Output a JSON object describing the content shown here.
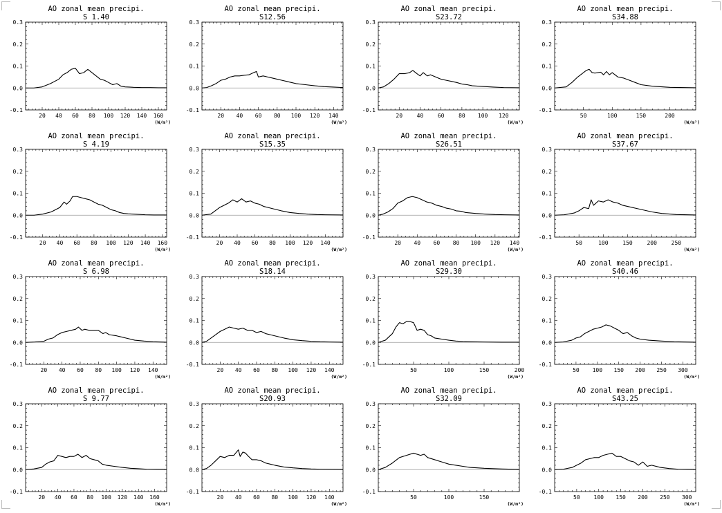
{
  "page": {
    "axis_unit_label": "(W/m²)",
    "colors": {
      "line": "#000000",
      "zero_line": "#9a9a9a",
      "frame": "#000000",
      "background": "#ffffff"
    }
  },
  "chart_data": [
    {
      "type": "line",
      "title": "AO zonal mean precipi.",
      "subtitle": "S 1.40",
      "xlim": [
        0,
        170
      ],
      "ylim": [
        -0.1,
        0.3
      ],
      "xticks": [
        20,
        40,
        60,
        80,
        100,
        120,
        140,
        160
      ],
      "yticks": [
        -0.1,
        0.0,
        0.1,
        0.2,
        0.3
      ],
      "x": [
        0,
        10,
        20,
        30,
        40,
        45,
        50,
        55,
        60,
        65,
        70,
        75,
        80,
        85,
        90,
        95,
        100,
        105,
        110,
        115,
        120,
        125,
        130,
        140,
        150,
        160,
        170
      ],
      "y": [
        0,
        0,
        0.005,
        0.02,
        0.04,
        0.06,
        0.07,
        0.085,
        0.09,
        0.065,
        0.07,
        0.085,
        0.07,
        0.055,
        0.04,
        0.035,
        0.025,
        0.015,
        0.02,
        0.008,
        0.005,
        0.004,
        0.003,
        0.002,
        0.002,
        0.001,
        0.001
      ]
    },
    {
      "type": "line",
      "title": "AO zonal mean precipi.",
      "subtitle": "S12.56",
      "xlim": [
        0,
        150
      ],
      "ylim": [
        -0.1,
        0.3
      ],
      "xticks": [
        20,
        40,
        60,
        80,
        100,
        120,
        140
      ],
      "yticks": [
        -0.1,
        0.0,
        0.1,
        0.2,
        0.3
      ],
      "x": [
        0,
        5,
        10,
        15,
        20,
        25,
        30,
        35,
        40,
        45,
        50,
        55,
        58,
        60,
        65,
        70,
        75,
        80,
        85,
        90,
        95,
        100,
        110,
        120,
        130,
        140,
        150
      ],
      "y": [
        0,
        0.002,
        0.01,
        0.02,
        0.035,
        0.04,
        0.05,
        0.055,
        0.055,
        0.058,
        0.06,
        0.07,
        0.075,
        0.05,
        0.055,
        0.05,
        0.045,
        0.04,
        0.035,
        0.03,
        0.025,
        0.02,
        0.015,
        0.01,
        0.006,
        0.004,
        0.002
      ]
    },
    {
      "type": "line",
      "title": "AO zonal mean precipi.",
      "subtitle": "S23.72",
      "xlim": [
        0,
        135
      ],
      "ylim": [
        -0.1,
        0.3
      ],
      "xticks": [
        20,
        40,
        60,
        80,
        100,
        120
      ],
      "yticks": [
        -0.1,
        0.0,
        0.1,
        0.2,
        0.3
      ],
      "x": [
        0,
        5,
        10,
        15,
        20,
        25,
        30,
        33,
        37,
        40,
        43,
        47,
        50,
        55,
        60,
        65,
        70,
        75,
        80,
        85,
        90,
        100,
        110,
        120,
        135
      ],
      "y": [
        0,
        0.005,
        0.02,
        0.04,
        0.065,
        0.065,
        0.07,
        0.08,
        0.065,
        0.055,
        0.07,
        0.055,
        0.06,
        0.05,
        0.04,
        0.035,
        0.03,
        0.025,
        0.018,
        0.015,
        0.01,
        0.007,
        0.004,
        0.002,
        0.001
      ]
    },
    {
      "type": "line",
      "title": "AO zonal mean precipi.",
      "subtitle": "S34.88",
      "xlim": [
        0,
        245
      ],
      "ylim": [
        -0.1,
        0.3
      ],
      "xticks": [
        50,
        100,
        150,
        200
      ],
      "yticks": [
        -0.1,
        0.0,
        0.1,
        0.2,
        0.3
      ],
      "x": [
        0,
        20,
        30,
        40,
        50,
        55,
        60,
        65,
        70,
        80,
        85,
        90,
        95,
        100,
        110,
        120,
        130,
        140,
        150,
        170,
        200,
        245
      ],
      "y": [
        0,
        0.005,
        0.025,
        0.05,
        0.07,
        0.08,
        0.085,
        0.07,
        0.068,
        0.072,
        0.06,
        0.075,
        0.06,
        0.07,
        0.05,
        0.045,
        0.035,
        0.025,
        0.015,
        0.008,
        0.003,
        0.001
      ]
    },
    {
      "type": "line",
      "title": "AO zonal mean precipi.",
      "subtitle": "S 4.19",
      "xlim": [
        0,
        165
      ],
      "ylim": [
        -0.1,
        0.3
      ],
      "xticks": [
        20,
        40,
        60,
        80,
        100,
        120,
        140,
        160
      ],
      "yticks": [
        -0.1,
        0.0,
        0.1,
        0.2,
        0.3
      ],
      "x": [
        0,
        10,
        20,
        30,
        40,
        45,
        48,
        52,
        55,
        60,
        65,
        70,
        75,
        80,
        85,
        90,
        95,
        100,
        105,
        110,
        115,
        120,
        130,
        140,
        150,
        165
      ],
      "y": [
        0,
        0,
        0.005,
        0.015,
        0.035,
        0.06,
        0.05,
        0.065,
        0.085,
        0.085,
        0.08,
        0.075,
        0.07,
        0.06,
        0.05,
        0.045,
        0.035,
        0.025,
        0.02,
        0.012,
        0.008,
        0.006,
        0.004,
        0.002,
        0.001,
        0.001
      ]
    },
    {
      "type": "line",
      "title": "AO zonal mean precipi.",
      "subtitle": "S15.35",
      "xlim": [
        0,
        160
      ],
      "ylim": [
        -0.1,
        0.3
      ],
      "xticks": [
        20,
        40,
        60,
        80,
        100,
        120,
        140
      ],
      "yticks": [
        -0.1,
        0.0,
        0.1,
        0.2,
        0.3
      ],
      "x": [
        0,
        10,
        15,
        20,
        25,
        30,
        35,
        40,
        45,
        50,
        55,
        60,
        65,
        70,
        75,
        80,
        90,
        100,
        110,
        120,
        130,
        140,
        160
      ],
      "y": [
        0,
        0.005,
        0.02,
        0.035,
        0.045,
        0.055,
        0.07,
        0.06,
        0.075,
        0.06,
        0.065,
        0.055,
        0.05,
        0.04,
        0.035,
        0.03,
        0.02,
        0.012,
        0.008,
        0.005,
        0.003,
        0.002,
        0.001
      ]
    },
    {
      "type": "line",
      "title": "AO zonal mean precipi.",
      "subtitle": "S26.51",
      "xlim": [
        0,
        145
      ],
      "ylim": [
        -0.1,
        0.3
      ],
      "xticks": [
        20,
        40,
        60,
        80,
        100,
        120,
        140
      ],
      "yticks": [
        -0.1,
        0.0,
        0.1,
        0.2,
        0.3
      ],
      "x": [
        0,
        5,
        10,
        15,
        20,
        25,
        30,
        35,
        40,
        45,
        50,
        55,
        60,
        65,
        70,
        75,
        80,
        85,
        90,
        100,
        110,
        120,
        130,
        145
      ],
      "y": [
        0,
        0.005,
        0.015,
        0.03,
        0.055,
        0.065,
        0.08,
        0.085,
        0.08,
        0.07,
        0.06,
        0.055,
        0.045,
        0.04,
        0.032,
        0.028,
        0.02,
        0.018,
        0.012,
        0.008,
        0.005,
        0.003,
        0.002,
        0.001
      ]
    },
    {
      "type": "line",
      "title": "AO zonal mean precipi.",
      "subtitle": "S37.67",
      "xlim": [
        0,
        290
      ],
      "ylim": [
        -0.1,
        0.3
      ],
      "xticks": [
        50,
        100,
        150,
        200,
        250
      ],
      "yticks": [
        -0.1,
        0.0,
        0.1,
        0.2,
        0.3
      ],
      "x": [
        0,
        20,
        40,
        50,
        60,
        70,
        75,
        80,
        90,
        100,
        110,
        120,
        130,
        140,
        150,
        170,
        200,
        220,
        250,
        290
      ],
      "y": [
        0,
        0.002,
        0.01,
        0.02,
        0.035,
        0.03,
        0.07,
        0.045,
        0.065,
        0.06,
        0.07,
        0.06,
        0.055,
        0.045,
        0.04,
        0.03,
        0.015,
        0.008,
        0.003,
        0.001
      ]
    },
    {
      "type": "line",
      "title": "AO zonal mean precipi.",
      "subtitle": "S 6.98",
      "xlim": [
        0,
        155
      ],
      "ylim": [
        -0.1,
        0.3
      ],
      "xticks": [
        20,
        40,
        60,
        80,
        100,
        120,
        140
      ],
      "yticks": [
        -0.1,
        0.0,
        0.1,
        0.2,
        0.3
      ],
      "x": [
        0,
        10,
        20,
        25,
        30,
        35,
        40,
        45,
        50,
        55,
        58,
        62,
        65,
        70,
        75,
        80,
        85,
        88,
        92,
        100,
        105,
        110,
        120,
        130,
        140,
        155
      ],
      "y": [
        0,
        0.002,
        0.005,
        0.015,
        0.02,
        0.035,
        0.045,
        0.05,
        0.055,
        0.06,
        0.07,
        0.055,
        0.06,
        0.055,
        0.055,
        0.055,
        0.04,
        0.045,
        0.035,
        0.03,
        0.025,
        0.02,
        0.01,
        0.006,
        0.003,
        0.001
      ]
    },
    {
      "type": "line",
      "title": "AO zonal mean precipi.",
      "subtitle": "S18.14",
      "xlim": [
        0,
        155
      ],
      "ylim": [
        -0.1,
        0.3
      ],
      "xticks": [
        20,
        40,
        60,
        80,
        100,
        120,
        140
      ],
      "yticks": [
        -0.1,
        0.0,
        0.1,
        0.2,
        0.3
      ],
      "x": [
        0,
        5,
        10,
        15,
        20,
        25,
        30,
        35,
        40,
        45,
        50,
        55,
        60,
        65,
        70,
        75,
        80,
        90,
        100,
        110,
        120,
        130,
        140,
        155
      ],
      "y": [
        0,
        0.005,
        0.02,
        0.035,
        0.05,
        0.06,
        0.07,
        0.065,
        0.06,
        0.065,
        0.055,
        0.055,
        0.045,
        0.05,
        0.04,
        0.035,
        0.03,
        0.02,
        0.012,
        0.008,
        0.005,
        0.003,
        0.002,
        0.001
      ]
    },
    {
      "type": "line",
      "title": "AO zonal mean precipi.",
      "subtitle": "S29.30",
      "xlim": [
        0,
        200
      ],
      "ylim": [
        -0.1,
        0.3
      ],
      "xticks": [
        50,
        100,
        150,
        200
      ],
      "yticks": [
        -0.1,
        0.0,
        0.1,
        0.2,
        0.3
      ],
      "x": [
        0,
        10,
        20,
        25,
        30,
        35,
        40,
        45,
        50,
        55,
        60,
        65,
        70,
        75,
        80,
        90,
        100,
        110,
        120,
        130,
        150,
        175,
        200
      ],
      "y": [
        0,
        0.01,
        0.04,
        0.07,
        0.09,
        0.085,
        0.095,
        0.095,
        0.09,
        0.055,
        0.06,
        0.055,
        0.035,
        0.03,
        0.02,
        0.015,
        0.01,
        0.006,
        0.004,
        0.003,
        0.002,
        0.001,
        0.001
      ]
    },
    {
      "type": "line",
      "title": "AO zonal mean precipi.",
      "subtitle": "S40.46",
      "xlim": [
        0,
        330
      ],
      "ylim": [
        -0.1,
        0.3
      ],
      "xticks": [
        50,
        100,
        150,
        200,
        250,
        300
      ],
      "yticks": [
        -0.1,
        0.0,
        0.1,
        0.2,
        0.3
      ],
      "x": [
        0,
        20,
        40,
        50,
        60,
        70,
        80,
        90,
        100,
        110,
        120,
        130,
        140,
        150,
        160,
        170,
        180,
        190,
        200,
        220,
        250,
        280,
        330
      ],
      "y": [
        0,
        0.002,
        0.01,
        0.02,
        0.025,
        0.04,
        0.05,
        0.06,
        0.065,
        0.07,
        0.08,
        0.075,
        0.065,
        0.055,
        0.04,
        0.045,
        0.03,
        0.02,
        0.015,
        0.01,
        0.006,
        0.003,
        0.001
      ]
    },
    {
      "type": "line",
      "title": "AO zonal mean precipi.",
      "subtitle": "S 9.77",
      "xlim": [
        0,
        175
      ],
      "ylim": [
        -0.1,
        0.3
      ],
      "xticks": [
        20,
        40,
        60,
        80,
        100,
        120,
        140,
        160
      ],
      "yticks": [
        -0.1,
        0.0,
        0.1,
        0.2,
        0.3
      ],
      "x": [
        0,
        10,
        20,
        25,
        30,
        35,
        40,
        45,
        50,
        55,
        60,
        65,
        70,
        75,
        80,
        85,
        90,
        95,
        100,
        110,
        120,
        130,
        140,
        150,
        175
      ],
      "y": [
        0,
        0.003,
        0.01,
        0.025,
        0.035,
        0.04,
        0.065,
        0.06,
        0.055,
        0.06,
        0.06,
        0.07,
        0.055,
        0.065,
        0.05,
        0.045,
        0.04,
        0.025,
        0.02,
        0.015,
        0.01,
        0.006,
        0.004,
        0.002,
        0.001
      ]
    },
    {
      "type": "line",
      "title": "AO zonal mean precipi.",
      "subtitle": "S20.93",
      "xlim": [
        0,
        155
      ],
      "ylim": [
        -0.1,
        0.3
      ],
      "xticks": [
        20,
        40,
        60,
        80,
        100,
        120,
        140
      ],
      "yticks": [
        -0.1,
        0.0,
        0.1,
        0.2,
        0.3
      ],
      "x": [
        0,
        5,
        10,
        15,
        20,
        25,
        30,
        35,
        40,
        42,
        45,
        48,
        50,
        55,
        60,
        65,
        70,
        75,
        80,
        90,
        100,
        110,
        120,
        130,
        155
      ],
      "y": [
        0,
        0.005,
        0.02,
        0.04,
        0.06,
        0.055,
        0.065,
        0.065,
        0.09,
        0.06,
        0.08,
        0.075,
        0.065,
        0.045,
        0.045,
        0.04,
        0.03,
        0.025,
        0.02,
        0.012,
        0.008,
        0.005,
        0.003,
        0.002,
        0.001
      ]
    },
    {
      "type": "line",
      "title": "AO zonal mean precipi.",
      "subtitle": "S32.09",
      "xlim": [
        0,
        200
      ],
      "ylim": [
        -0.1,
        0.3
      ],
      "xticks": [
        50,
        100,
        150
      ],
      "yticks": [
        -0.1,
        0.0,
        0.1,
        0.2,
        0.3
      ],
      "x": [
        0,
        10,
        20,
        30,
        40,
        50,
        60,
        65,
        70,
        80,
        90,
        100,
        110,
        120,
        130,
        150,
        175,
        200
      ],
      "y": [
        0,
        0.01,
        0.03,
        0.055,
        0.065,
        0.075,
        0.065,
        0.07,
        0.055,
        0.045,
        0.035,
        0.025,
        0.02,
        0.015,
        0.01,
        0.006,
        0.003,
        0.001
      ]
    },
    {
      "type": "line",
      "title": "AO zonal mean precipi.",
      "subtitle": "S43.25",
      "xlim": [
        0,
        320
      ],
      "ylim": [
        -0.1,
        0.3
      ],
      "xticks": [
        50,
        100,
        150,
        200,
        250,
        300
      ],
      "yticks": [
        -0.1,
        0.0,
        0.1,
        0.2,
        0.3
      ],
      "x": [
        0,
        20,
        40,
        50,
        60,
        70,
        80,
        90,
        100,
        110,
        120,
        130,
        140,
        150,
        160,
        170,
        180,
        190,
        200,
        210,
        220,
        240,
        260,
        280,
        320
      ],
      "y": [
        0,
        0.002,
        0.01,
        0.02,
        0.03,
        0.045,
        0.05,
        0.055,
        0.055,
        0.065,
        0.07,
        0.075,
        0.06,
        0.06,
        0.05,
        0.04,
        0.035,
        0.02,
        0.035,
        0.015,
        0.02,
        0.01,
        0.005,
        0.002,
        0.001
      ]
    }
  ]
}
